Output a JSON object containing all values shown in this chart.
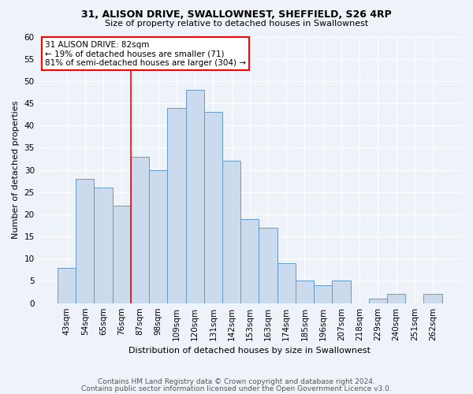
{
  "title1": "31, ALISON DRIVE, SWALLOWNEST, SHEFFIELD, S26 4RP",
  "title2": "Size of property relative to detached houses in Swallownest",
  "xlabel": "Distribution of detached houses by size in Swallownest",
  "ylabel": "Number of detached properties",
  "categories": [
    "43sqm",
    "54sqm",
    "65sqm",
    "76sqm",
    "87sqm",
    "98sqm",
    "109sqm",
    "120sqm",
    "131sqm",
    "142sqm",
    "153sqm",
    "163sqm",
    "174sqm",
    "185sqm",
    "196sqm",
    "207sqm",
    "218sqm",
    "229sqm",
    "240sqm",
    "251sqm",
    "262sqm"
  ],
  "values": [
    8,
    28,
    26,
    22,
    33,
    30,
    44,
    48,
    43,
    32,
    19,
    17,
    9,
    5,
    4,
    5,
    0,
    1,
    2,
    0,
    2
  ],
  "bar_color": "#ccdaed",
  "bar_edge_color": "#6699cc",
  "ylim": [
    0,
    60
  ],
  "yticks": [
    0,
    5,
    10,
    15,
    20,
    25,
    30,
    35,
    40,
    45,
    50,
    55,
    60
  ],
  "vline_x": 3.5,
  "annotation_line1": "31 ALISON DRIVE: 82sqm",
  "annotation_line2": "← 19% of detached houses are smaller (71)",
  "annotation_line3": "81% of semi-detached houses are larger (304) →",
  "footer1": "Contains HM Land Registry data © Crown copyright and database right 2024.",
  "footer2": "Contains public sector information licensed under the Open Government Licence v3.0.",
  "background_color": "#eef2f9",
  "plot_bg_color": "#eef2f9",
  "grid_color": "#ffffff",
  "title1_fontsize": 9,
  "title2_fontsize": 8,
  "ylabel_fontsize": 8,
  "xlabel_fontsize": 8,
  "tick_fontsize": 7.5,
  "annotation_fontsize": 7.5,
  "footer_fontsize": 6.5
}
